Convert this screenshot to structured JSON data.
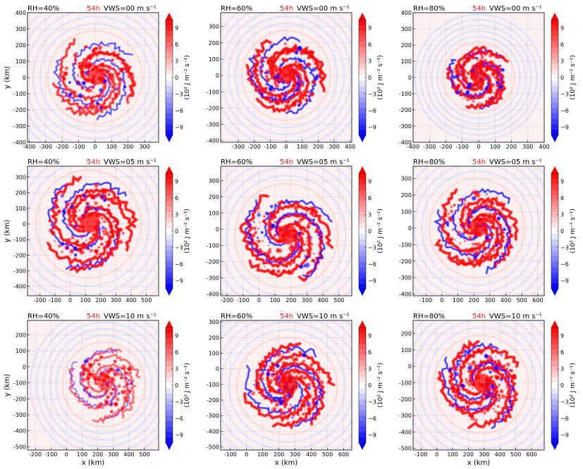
{
  "colorbar": {
    "label": "(10² J m⁻² s⁻¹)",
    "ticks": [
      -9,
      -6,
      -3,
      0,
      3,
      6,
      9
    ],
    "range": [
      -10.5,
      10.5
    ],
    "colors": {
      "neg_max": "#0000ff",
      "mid": "#ffffff",
      "pos_max": "#ff0000"
    }
  },
  "chart_data": [
    {
      "type": "heatmap",
      "rh": "RH=40%",
      "time": "54h",
      "vws": "VWS=00 m s⁻¹",
      "xlim": [
        -410,
        385
      ],
      "ylim": [
        -400,
        400
      ],
      "xticks": [
        -400,
        -300,
        -200,
        -100,
        0,
        100,
        200,
        300
      ],
      "yticks": [
        -400,
        -300,
        -200,
        -100,
        0,
        100,
        200,
        300,
        400
      ],
      "xlabel": "",
      "ylabel": "y (km)",
      "center": [
        0,
        0
      ],
      "core_radius": 250,
      "strength": 0.85
    },
    {
      "type": "heatmap",
      "rh": "RH=60%",
      "time": "54h",
      "vws": "VWS=00 m s⁻¹",
      "xlim": [
        -410,
        410
      ],
      "ylim": [
        -410,
        385
      ],
      "xticks": [
        -300,
        -200,
        -100,
        0,
        100,
        200,
        300,
        400
      ],
      "yticks": [
        -400,
        -300,
        -200,
        -100,
        0,
        100,
        200,
        300
      ],
      "xlabel": "",
      "ylabel": "",
      "center": [
        0,
        0
      ],
      "core_radius": 240,
      "strength": 1.0
    },
    {
      "type": "heatmap",
      "rh": "RH=80%",
      "time": "54h",
      "vws": "VWS=00 m s⁻¹",
      "xlim": [
        -400,
        400
      ],
      "ylim": [
        -400,
        400
      ],
      "xticks": [
        -400,
        -300,
        -200,
        -100,
        0,
        100,
        200,
        300,
        400
      ],
      "yticks": [
        -400,
        -300,
        -200,
        -100,
        0,
        100,
        200,
        300,
        400
      ],
      "xlabel": "",
      "ylabel": "",
      "center": [
        0,
        0
      ],
      "core_radius": 190,
      "strength": 1.0
    },
    {
      "type": "heatmap",
      "rh": "RH=40%",
      "time": "54h",
      "vws": "VWS=05 m s⁻¹",
      "xlim": [
        -280,
        580
      ],
      "ylim": [
        -460,
        370
      ],
      "xticks": [
        -200,
        -100,
        0,
        100,
        200,
        300,
        400,
        500
      ],
      "yticks": [
        -400,
        -300,
        -200,
        -100,
        0,
        100,
        200,
        300
      ],
      "xlabel": "",
      "ylabel": "y (km)",
      "center": [
        120,
        0
      ],
      "core_radius": 300,
      "strength": 1.0
    },
    {
      "type": "heatmap",
      "rh": "RH=60%",
      "time": "54h",
      "vws": "VWS=05 m s⁻¹",
      "xlim": [
        -240,
        580
      ],
      "ylim": [
        -410,
        390
      ],
      "xticks": [
        -200,
        -100,
        0,
        100,
        200,
        300,
        400,
        500
      ],
      "yticks": [
        -400,
        -300,
        -200,
        -100,
        0,
        100,
        200,
        300
      ],
      "xlabel": "",
      "ylabel": "",
      "center": [
        170,
        -40
      ],
      "core_radius": 280,
      "strength": 1.0
    },
    {
      "type": "heatmap",
      "rh": "RH=80%",
      "time": "54h",
      "vws": "VWS=05 m s⁻¹",
      "xlim": [
        -180,
        640
      ],
      "ylim": [
        -410,
        375
      ],
      "xticks": [
        -100,
        0,
        100,
        200,
        300,
        400,
        500,
        600
      ],
      "yticks": [
        -400,
        -300,
        -200,
        -100,
        0,
        100,
        200,
        300
      ],
      "xlabel": "",
      "ylabel": "",
      "center": [
        220,
        0
      ],
      "core_radius": 260,
      "strength": 1.0
    },
    {
      "type": "heatmap",
      "rh": "RH=40%",
      "time": "54h",
      "vws": "VWS=10 m s⁻¹",
      "xlim": [
        -250,
        590
      ],
      "ylim": [
        -520,
        290
      ],
      "xticks": [
        -200,
        -100,
        0,
        100,
        200,
        300,
        400,
        500
      ],
      "yticks": [
        -500,
        -400,
        -300,
        -200,
        -100,
        0,
        100,
        200
      ],
      "xlabel": "x (km)",
      "ylabel": "y (km)",
      "center": [
        240,
        -110
      ],
      "core_radius": 230,
      "strength": 0.6
    },
    {
      "type": "heatmap",
      "rh": "RH=60%",
      "time": "54h",
      "vws": "VWS=10 m s⁻¹",
      "xlim": [
        -160,
        650
      ],
      "ylim": [
        -520,
        310
      ],
      "xticks": [
        -100,
        0,
        100,
        200,
        300,
        400,
        500,
        600
      ],
      "yticks": [
        -500,
        -400,
        -300,
        -200,
        -100,
        0,
        100,
        200,
        300
      ],
      "xlabel": "x (km)",
      "ylabel": "",
      "center": [
        250,
        -110
      ],
      "core_radius": 270,
      "strength": 1.0
    },
    {
      "type": "heatmap",
      "rh": "RH=80%",
      "time": "54h",
      "vws": "VWS=10 m s⁻¹",
      "xlim": [
        -150,
        680
      ],
      "ylim": [
        -510,
        280
      ],
      "xticks": [
        -100,
        0,
        100,
        200,
        300,
        400,
        500,
        600
      ],
      "yticks": [
        -500,
        -400,
        -300,
        -200,
        -100,
        0,
        100,
        200
      ],
      "xlabel": "x (km)",
      "ylabel": "",
      "center": [
        280,
        -110
      ],
      "core_radius": 260,
      "strength": 1.0
    }
  ]
}
